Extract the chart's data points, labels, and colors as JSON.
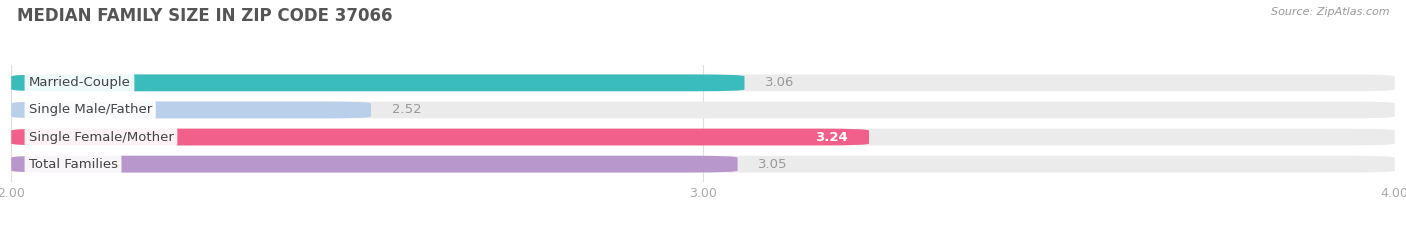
{
  "title": "MEDIAN FAMILY SIZE IN ZIP CODE 37066",
  "source": "Source: ZipAtlas.com",
  "categories": [
    "Married-Couple",
    "Single Male/Father",
    "Single Female/Mother",
    "Total Families"
  ],
  "values": [
    3.06,
    2.52,
    3.24,
    3.05
  ],
  "bar_colors": [
    "#3abcbc",
    "#b8d0ea",
    "#f0608a",
    "#b898cc"
  ],
  "background_color": "#ffffff",
  "bar_bg_color": "#ebebeb",
  "xlim": [
    2.0,
    4.0
  ],
  "xticks": [
    2.0,
    3.0,
    4.0
  ],
  "xtick_labels": [
    "2.00",
    "3.00",
    "4.00"
  ],
  "label_fontsize": 9.5,
  "value_fontsize": 9.5,
  "title_fontsize": 12,
  "bar_height": 0.62,
  "value_color_inside": "#ffffff",
  "value_color_outside": "#999999",
  "grid_color": "#dddddd",
  "title_color": "#555555",
  "tick_color": "#aaaaaa"
}
